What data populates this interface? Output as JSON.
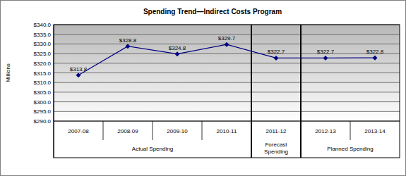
{
  "chart_data": {
    "type": "line",
    "title": "Spending Trend—Indirect Costs Program",
    "y_label": "Millions",
    "categories": [
      "2007-08",
      "2008-09",
      "2009-10",
      "2010-11",
      "2011-12",
      "2012-13",
      "2013-14"
    ],
    "values": [
      313.8,
      328.8,
      324.8,
      329.7,
      322.7,
      322.7,
      322.8
    ],
    "value_labels": [
      "$313.8",
      "$328.8",
      "$324.8",
      "$329.7",
      "$322.7",
      "$322.7",
      "$322.8"
    ],
    "color": "#000080",
    "marker": "diamond",
    "data_labels": true,
    "grid": true,
    "ylim": [
      290,
      340
    ],
    "yticks": [
      {
        "value": 290,
        "label": "$290.0"
      },
      {
        "value": 295,
        "label": "$295.0"
      },
      {
        "value": 300,
        "label": "$300.0"
      },
      {
        "value": 305,
        "label": "$305.0"
      },
      {
        "value": 310,
        "label": "$310.0"
      },
      {
        "value": 315,
        "label": "$315.0"
      },
      {
        "value": 320,
        "label": "$320.0"
      },
      {
        "value": 325,
        "label": "$325.0"
      },
      {
        "value": 330,
        "label": "$330.0"
      },
      {
        "value": 335,
        "label": "$335.0"
      },
      {
        "value": 340,
        "label": "$340.0"
      }
    ],
    "category_groups": [
      {
        "label": "Actual Spending",
        "count": 4
      },
      {
        "label": "Forecast Spending",
        "count": 1
      },
      {
        "label": "Planned Spending",
        "count": 2
      }
    ]
  }
}
